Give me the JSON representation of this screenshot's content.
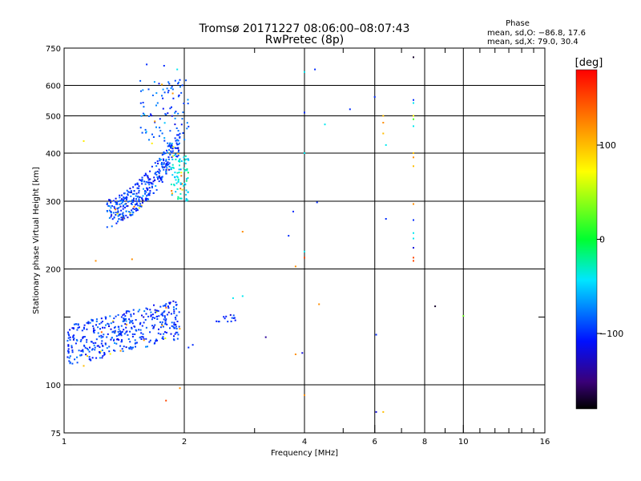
{
  "chart_data": {
    "type": "scatter",
    "title": "Tromsø 20171227 08:06:00–08:07:43",
    "subtitle": "RwPretec (8p)",
    "phase_title": "Phase",
    "phase_line_o": "mean, sd,O: −86.8, 17.6",
    "phase_line_x": "mean, sd,X: 79.0, 30.4",
    "xlabel": "Frequency [MHz]",
    "ylabel": "Stationary phase Virtual Height [km]",
    "x_scale": "log",
    "y_scale": "log",
    "xlim": [
      1,
      16
    ],
    "ylim": [
      75,
      750
    ],
    "x_ticks": [
      {
        "value": 1,
        "label": "1"
      },
      {
        "value": 2,
        "label": "2"
      },
      {
        "value": 4,
        "label": "4"
      },
      {
        "value": 6,
        "label": "6"
      },
      {
        "value": 8,
        "label": "8"
      },
      {
        "value": 10,
        "label": "10"
      },
      {
        "value": 16,
        "label": "16"
      }
    ],
    "x_grid": [
      2,
      4,
      6,
      8,
      10
    ],
    "x_minor": [
      3,
      5,
      7,
      9,
      11,
      12,
      13,
      14,
      15
    ],
    "y_ticks": [
      {
        "value": 75,
        "label": "75"
      },
      {
        "value": 100,
        "label": "100"
      },
      {
        "value": 200,
        "label": "200"
      },
      {
        "value": 300,
        "label": "300"
      },
      {
        "value": 400,
        "label": "400"
      },
      {
        "value": 500,
        "label": "500"
      },
      {
        "value": 600,
        "label": "600"
      },
      {
        "value": 750,
        "label": "750"
      }
    ],
    "y_grid": [
      100,
      200,
      300,
      400,
      500,
      600
    ],
    "y_minor": [
      150
    ],
    "grid": true,
    "colorbar": {
      "label": "[deg]",
      "range": [
        -180,
        180
      ],
      "ticks": [
        {
          "value": 100,
          "label": "100"
        },
        {
          "value": 0,
          "label": "0"
        },
        {
          "value": -100,
          "label": "−100"
        }
      ]
    },
    "colors": {
      "o_mode": "#1a3cff",
      "o_mode_alt": "#2a6aff",
      "cyan": "#28c8ff",
      "x_mode": "#e0e000"
    },
    "clusters": [
      {
        "name": "",
        "fmin": 1.28,
        "fmax": 1.95,
        "hmin": 255,
        "hmax": 420,
        "count": 360,
        "phase_mean": -95,
        "phase_sd": 30,
        "shape": "f-trace"
      },
      {
        "name": "",
        "fmin": 1.55,
        "fmax": 2.05,
        "hmin": 420,
        "hmax": 620,
        "count": 95,
        "phase_mean": -85,
        "phase_sd": 30
      },
      {
        "name": "",
        "fmin": 1.85,
        "fmax": 2.05,
        "hmin": 300,
        "hmax": 400,
        "count": 80,
        "phase_mean": -40,
        "phase_sd": 25
      },
      {
        "name": "",
        "fmin": 1.02,
        "fmax": 1.95,
        "hmin": 112,
        "hmax": 175,
        "count": 420,
        "phase_mean": -95,
        "phase_sd": 25,
        "shape": "e-trace"
      },
      {
        "name": "",
        "fmin": 2.4,
        "fmax": 2.7,
        "hmin": 146,
        "hmax": 152,
        "count": 14,
        "phase_mean": -100,
        "phase_sd": 20
      }
    ],
    "points": [
      {
        "x": 1.61,
        "y": 680,
        "phase": -100
      },
      {
        "x": 1.78,
        "y": 675,
        "phase": -100
      },
      {
        "x": 1.92,
        "y": 660,
        "phase": -40
      },
      {
        "x": 1.95,
        "y": 620,
        "phase": -100
      },
      {
        "x": 4.0,
        "y": 650,
        "phase": -40
      },
      {
        "x": 4.25,
        "y": 660,
        "phase": -100
      },
      {
        "x": 5.2,
        "y": 520,
        "phase": -100
      },
      {
        "x": 4.5,
        "y": 475,
        "phase": -40
      },
      {
        "x": 6.0,
        "y": 560,
        "phase": -100
      },
      {
        "x": 7.5,
        "y": 710,
        "phase": -170
      },
      {
        "x": 7.5,
        "y": 550,
        "phase": -100
      },
      {
        "x": 7.5,
        "y": 540,
        "phase": -40
      },
      {
        "x": 7.5,
        "y": 500,
        "phase": 80
      },
      {
        "x": 7.5,
        "y": 490,
        "phase": 20
      },
      {
        "x": 7.5,
        "y": 470,
        "phase": -40
      },
      {
        "x": 7.5,
        "y": 400,
        "phase": 100
      },
      {
        "x": 7.5,
        "y": 390,
        "phase": 120
      },
      {
        "x": 7.5,
        "y": 370,
        "phase": 100
      },
      {
        "x": 7.5,
        "y": 295,
        "phase": 120
      },
      {
        "x": 7.5,
        "y": 268,
        "phase": -100
      },
      {
        "x": 7.5,
        "y": 248,
        "phase": -40
      },
      {
        "x": 7.5,
        "y": 240,
        "phase": -40
      },
      {
        "x": 7.5,
        "y": 227,
        "phase": -120
      },
      {
        "x": 7.5,
        "y": 214,
        "phase": 150
      },
      {
        "x": 7.5,
        "y": 210,
        "phase": 150
      },
      {
        "x": 6.3,
        "y": 500,
        "phase": 100
      },
      {
        "x": 6.3,
        "y": 480,
        "phase": 120
      },
      {
        "x": 6.3,
        "y": 450,
        "phase": 100
      },
      {
        "x": 6.4,
        "y": 420,
        "phase": -40
      },
      {
        "x": 6.4,
        "y": 270,
        "phase": -100
      },
      {
        "x": 4.0,
        "y": 510,
        "phase": -100
      },
      {
        "x": 4.0,
        "y": 400,
        "phase": -40
      },
      {
        "x": 4.3,
        "y": 298,
        "phase": -100
      },
      {
        "x": 3.75,
        "y": 282,
        "phase": -100
      },
      {
        "x": 3.65,
        "y": 244,
        "phase": -100
      },
      {
        "x": 4.0,
        "y": 222,
        "phase": -40
      },
      {
        "x": 4.0,
        "y": 214,
        "phase": 150
      },
      {
        "x": 3.8,
        "y": 203,
        "phase": 120
      },
      {
        "x": 2.8,
        "y": 250,
        "phase": 120
      },
      {
        "x": 1.48,
        "y": 212,
        "phase": 120
      },
      {
        "x": 1.2,
        "y": 210,
        "phase": 120
      },
      {
        "x": 1.12,
        "y": 430,
        "phase": 80
      },
      {
        "x": 4.35,
        "y": 162,
        "phase": 120
      },
      {
        "x": 8.5,
        "y": 160,
        "phase": -170
      },
      {
        "x": 10.0,
        "y": 151,
        "phase": 30
      },
      {
        "x": 3.2,
        "y": 133,
        "phase": -140
      },
      {
        "x": 3.8,
        "y": 120,
        "phase": 120
      },
      {
        "x": 3.95,
        "y": 121,
        "phase": -120
      },
      {
        "x": 6.05,
        "y": 135,
        "phase": -100
      },
      {
        "x": 4.0,
        "y": 94,
        "phase": 120
      },
      {
        "x": 1.95,
        "y": 98,
        "phase": 120
      },
      {
        "x": 1.8,
        "y": 91,
        "phase": 150
      },
      {
        "x": 6.05,
        "y": 85,
        "phase": -120
      },
      {
        "x": 6.3,
        "y": 85,
        "phase": 100
      },
      {
        "x": 2.8,
        "y": 170,
        "phase": -40
      },
      {
        "x": 2.65,
        "y": 168,
        "phase": -40
      },
      {
        "x": 2.05,
        "y": 125,
        "phase": -100
      },
      {
        "x": 2.1,
        "y": 127,
        "phase": -100
      },
      {
        "x": 1.12,
        "y": 112,
        "phase": 100
      },
      {
        "x": 1.0,
        "y": 116,
        "phase": 100
      }
    ]
  }
}
